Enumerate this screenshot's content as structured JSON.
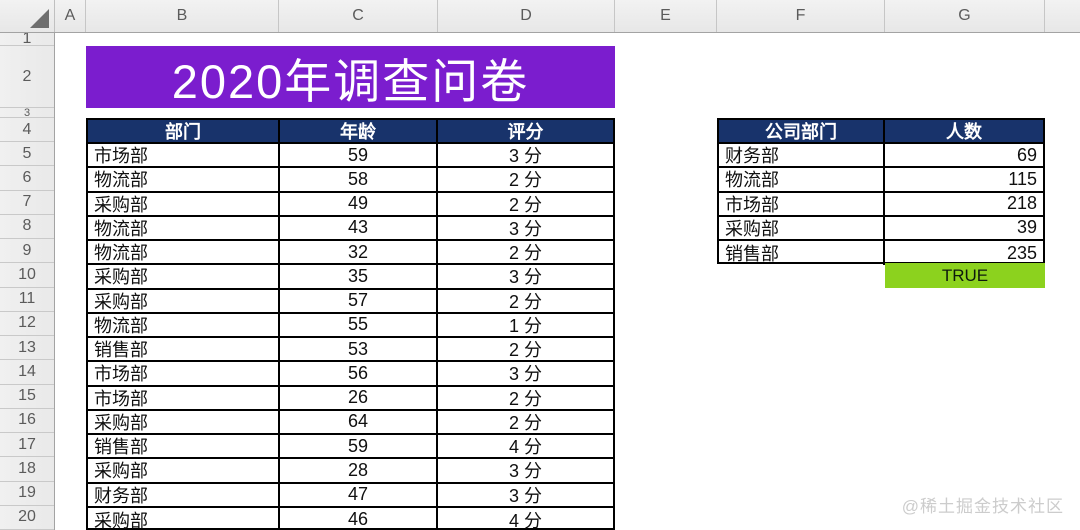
{
  "colors": {
    "title_bg": "#7B1DCE",
    "title_text": "#FFFFFF",
    "table_header_bg": "#18336B",
    "table_header_text": "#FFFFFF",
    "true_cell_bg": "#8CD21E",
    "table_border": "#000000"
  },
  "column_headers": [
    "A",
    "B",
    "C",
    "D",
    "E",
    "F",
    "G"
  ],
  "row_numbers": [
    "1",
    "2",
    "3",
    "4",
    "5",
    "6",
    "7",
    "8",
    "9",
    "10",
    "11",
    "12",
    "13",
    "14",
    "15",
    "16",
    "17",
    "18",
    "19",
    "20"
  ],
  "title": "2020年调查问卷",
  "main_table": {
    "headers": [
      "部门",
      "年龄",
      "评分"
    ],
    "rows": [
      [
        "市场部",
        "59",
        "3 分"
      ],
      [
        "物流部",
        "58",
        "2 分"
      ],
      [
        "采购部",
        "49",
        "2 分"
      ],
      [
        "物流部",
        "43",
        "3 分"
      ],
      [
        "物流部",
        "32",
        "2 分"
      ],
      [
        "采购部",
        "35",
        "3 分"
      ],
      [
        "采购部",
        "57",
        "2 分"
      ],
      [
        "物流部",
        "55",
        "1 分"
      ],
      [
        "销售部",
        "53",
        "2 分"
      ],
      [
        "市场部",
        "56",
        "3 分"
      ],
      [
        "市场部",
        "26",
        "2 分"
      ],
      [
        "采购部",
        "64",
        "2 分"
      ],
      [
        "销售部",
        "59",
        "4 分"
      ],
      [
        "采购部",
        "28",
        "3 分"
      ],
      [
        "财务部",
        "47",
        "3 分"
      ],
      [
        "采购部",
        "46",
        "4 分"
      ]
    ]
  },
  "summary_table": {
    "headers": [
      "公司部门",
      "人数"
    ],
    "rows": [
      [
        "财务部",
        "69"
      ],
      [
        "物流部",
        "115"
      ],
      [
        "市场部",
        "218"
      ],
      [
        "采购部",
        "39"
      ],
      [
        "销售部",
        "235"
      ]
    ],
    "result_cell": "TRUE"
  },
  "watermark": "@稀土掘金技术社区"
}
